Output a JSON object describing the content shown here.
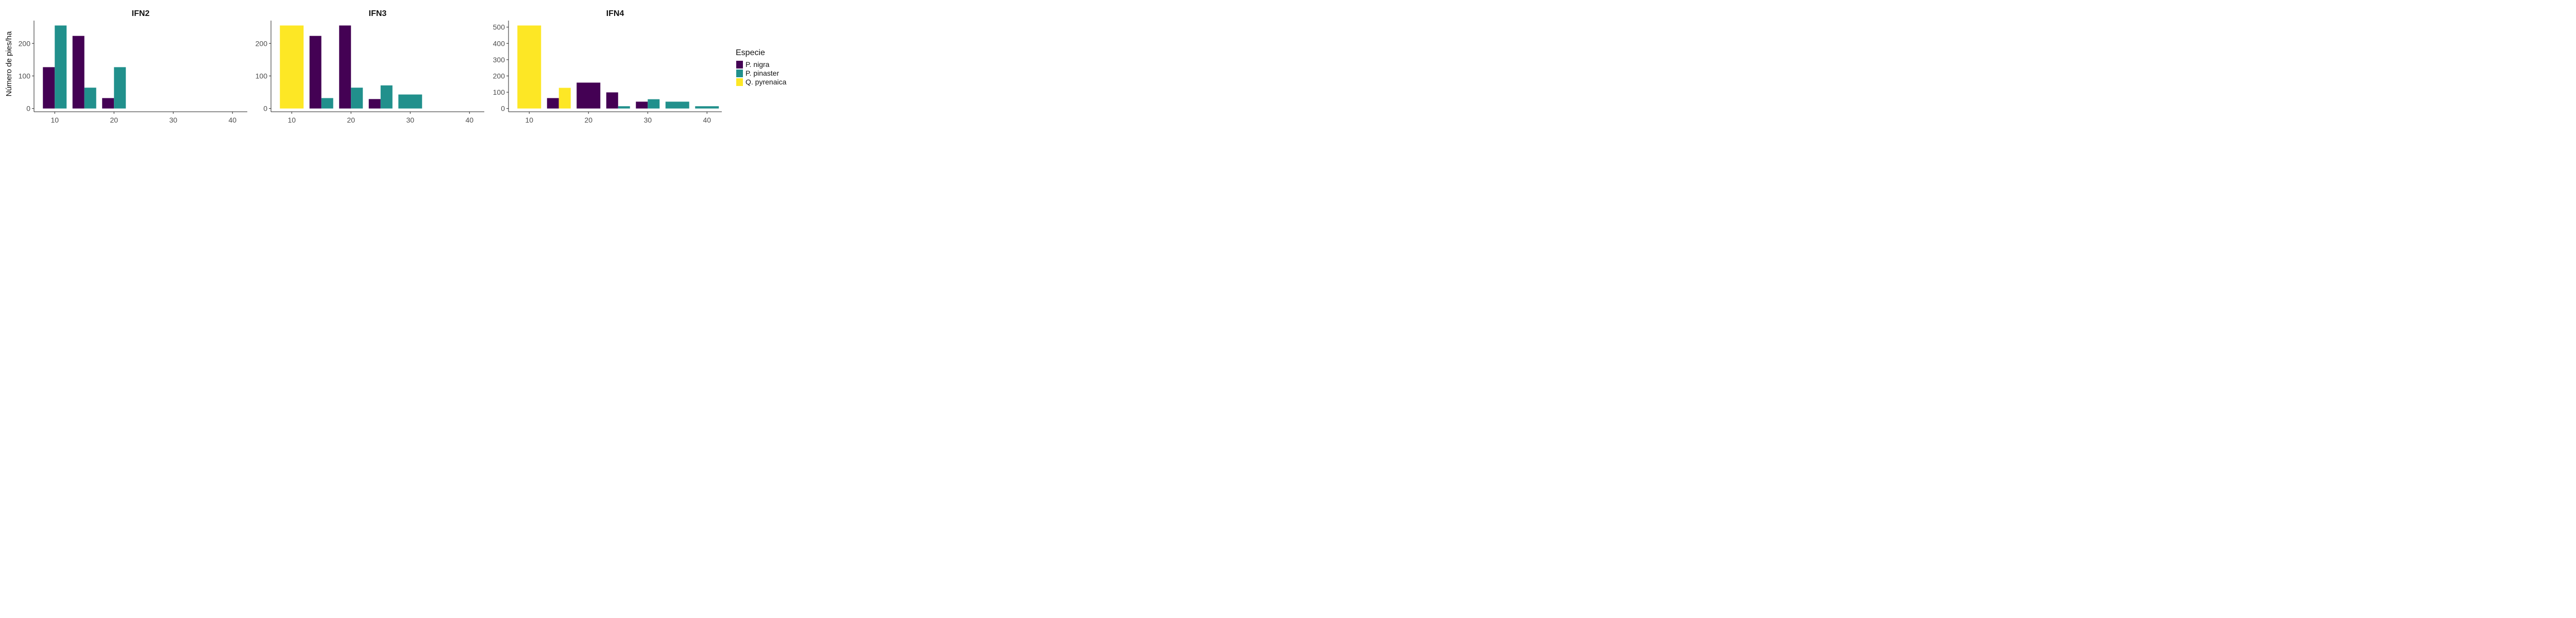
{
  "chart_data": {
    "type": "bar",
    "ylabel": "Número de pies/ha",
    "legend": {
      "title": "Especie",
      "position": "right",
      "entries": [
        {
          "name": "P. nigra",
          "color": "#440154"
        },
        {
          "name": "P. pinaster",
          "color": "#21908C"
        },
        {
          "name": "Q. pyrenaica",
          "color": "#FDE725"
        }
      ]
    },
    "grid": false,
    "xlim": [
      6.5,
      42.5
    ],
    "xticks": [
      10,
      20,
      30,
      40
    ],
    "panels": [
      {
        "title": "IFN2",
        "ylim": [
          -10,
          270
        ],
        "yticks": [
          0,
          100,
          200
        ],
        "bars": [
          {
            "x": 10,
            "series": "P. nigra",
            "value": 127
          },
          {
            "x": 10,
            "series": "P. pinaster",
            "value": 255
          },
          {
            "x": 15,
            "series": "P. nigra",
            "value": 223
          },
          {
            "x": 15,
            "series": "P. pinaster",
            "value": 64
          },
          {
            "x": 20,
            "series": "P. nigra",
            "value": 32
          },
          {
            "x": 20,
            "series": "P. pinaster",
            "value": 127
          }
        ]
      },
      {
        "title": "IFN3",
        "ylim": [
          -10,
          270
        ],
        "yticks": [
          0,
          100,
          200
        ],
        "bars": [
          {
            "x": 10,
            "series": "Q. pyrenaica",
            "value": 255
          },
          {
            "x": 15,
            "series": "P. nigra",
            "value": 223
          },
          {
            "x": 15,
            "series": "P. pinaster",
            "value": 32
          },
          {
            "x": 20,
            "series": "P. nigra",
            "value": 255
          },
          {
            "x": 20,
            "series": "P. pinaster",
            "value": 64
          },
          {
            "x": 25,
            "series": "P. nigra",
            "value": 29
          },
          {
            "x": 25,
            "series": "P. pinaster",
            "value": 71
          },
          {
            "x": 30,
            "series": "P. pinaster",
            "value": 43
          }
        ]
      },
      {
        "title": "IFN4",
        "ylim": [
          -20,
          540
        ],
        "yticks": [
          0,
          100,
          200,
          300,
          400,
          500
        ],
        "bars": [
          {
            "x": 10,
            "series": "Q. pyrenaica",
            "value": 510
          },
          {
            "x": 15,
            "series": "P. nigra",
            "value": 64
          },
          {
            "x": 15,
            "series": "Q. pyrenaica",
            "value": 127
          },
          {
            "x": 20,
            "series": "P. nigra",
            "value": 159
          },
          {
            "x": 25,
            "series": "P. nigra",
            "value": 99
          },
          {
            "x": 25,
            "series": "P. pinaster",
            "value": 14
          },
          {
            "x": 30,
            "series": "P. nigra",
            "value": 42
          },
          {
            "x": 30,
            "series": "P. pinaster",
            "value": 57
          },
          {
            "x": 35,
            "series": "P. pinaster",
            "value": 42
          },
          {
            "x": 40,
            "series": "P. pinaster",
            "value": 14
          }
        ]
      }
    ]
  }
}
